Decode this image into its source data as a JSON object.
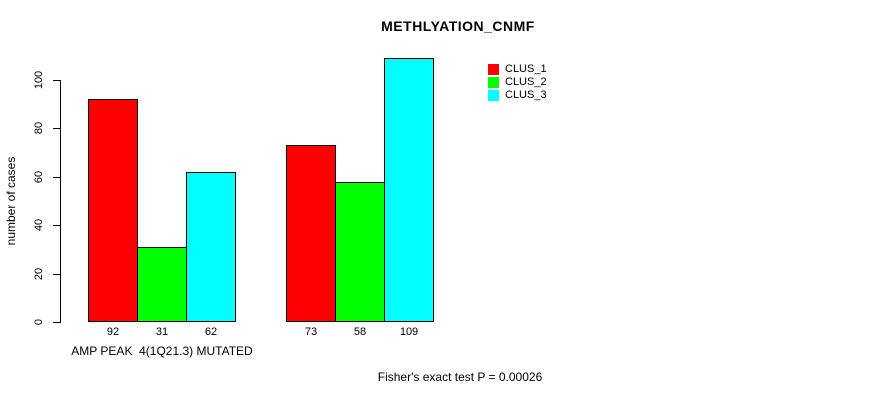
{
  "chart_data": {
    "type": "bar",
    "title": "METHLYATION_CNMF",
    "ylabel": "number of cases",
    "xlabel": "",
    "categories": [
      "AMP PEAK  4(1Q21.3) MUTATED",
      ""
    ],
    "series": [
      {
        "name": "CLUS_1",
        "color": "#ff0000",
        "values": [
          92,
          73
        ]
      },
      {
        "name": "CLUS_2",
        "color": "#00ff00",
        "values": [
          31,
          58
        ]
      },
      {
        "name": "CLUS_3",
        "color": "#00ffff",
        "values": [
          62,
          109
        ]
      }
    ],
    "yticks": [
      0,
      20,
      40,
      60,
      80,
      100
    ],
    "ylim": [
      0,
      110
    ],
    "grid": false,
    "legend_position": "top-right",
    "bar_border_color": "#000000",
    "annotation": "Fisher's exact test P = 0.00026"
  }
}
